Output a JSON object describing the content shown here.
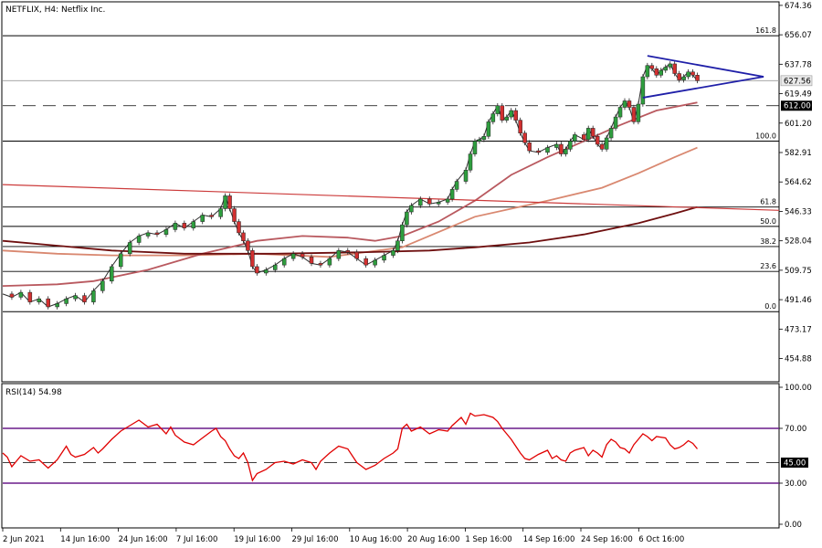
{
  "chart_data": [
    {
      "type": "candlestick",
      "title": "NETFLIX, H4:  Netflix Inc.",
      "price_axis_ticks": [
        "674.36",
        "656.07",
        "637.78",
        "619.49",
        "601.20",
        "582.91",
        "564.62",
        "546.33",
        "528.04",
        "509.75",
        "491.46",
        "473.17",
        "454.88"
      ],
      "price_axis_values": [
        674.36,
        656.07,
        637.78,
        619.49,
        601.2,
        582.91,
        564.62,
        546.33,
        528.04,
        509.75,
        491.46,
        473.17,
        454.88
      ],
      "ylim": [
        441,
        676
      ],
      "current_price": {
        "label": "627.56",
        "value": 627.56
      },
      "support_level": {
        "label": "612.00",
        "value": 612.0
      },
      "fibonacci_levels": [
        {
          "label": "161.8",
          "value": 655.5
        },
        {
          "label": "100.0",
          "value": 590.0
        },
        {
          "label": "61.8",
          "value": 549.0
        },
        {
          "label": "50.0",
          "value": 537.0
        },
        {
          "label": "38.2",
          "value": 524.5
        },
        {
          "label": "23.6",
          "value": 509.0
        },
        {
          "label": "0.0",
          "value": 484.0
        }
      ],
      "x_axis_labels": [
        "2 Jun 2021",
        "14 Jun 16:00",
        "24 Jun 16:00",
        "7 Jul 16:00",
        "19 Jul 16:00",
        "29 Jul 16:00",
        "10 Aug 16:00",
        "20 Aug 16:00",
        "1 Sep 16:00",
        "14 Sep 16:00",
        "24 Sep 16:00",
        "6 Oct 16:00"
      ],
      "close_series": [
        [
          0,
          495
        ],
        [
          10,
          493
        ],
        [
          20,
          496
        ],
        [
          30,
          490
        ],
        [
          40,
          492
        ],
        [
          50,
          487
        ],
        [
          60,
          489
        ],
        [
          70,
          492
        ],
        [
          80,
          494
        ],
        [
          90,
          490
        ],
        [
          100,
          497
        ],
        [
          110,
          503
        ],
        [
          120,
          512
        ],
        [
          130,
          520
        ],
        [
          140,
          527
        ],
        [
          150,
          531
        ],
        [
          160,
          533
        ],
        [
          170,
          532
        ],
        [
          180,
          535
        ],
        [
          190,
          539
        ],
        [
          200,
          536
        ],
        [
          210,
          540
        ],
        [
          220,
          544
        ],
        [
          230,
          543
        ],
        [
          240,
          548
        ],
        [
          245,
          556
        ],
        [
          250,
          548
        ],
        [
          255,
          540
        ],
        [
          260,
          533
        ],
        [
          265,
          528
        ],
        [
          270,
          522
        ],
        [
          275,
          512
        ],
        [
          280,
          508
        ],
        [
          290,
          510
        ],
        [
          300,
          513
        ],
        [
          310,
          517
        ],
        [
          320,
          520
        ],
        [
          330,
          518
        ],
        [
          340,
          514
        ],
        [
          350,
          513
        ],
        [
          360,
          517
        ],
        [
          370,
          522
        ],
        [
          380,
          521
        ],
        [
          390,
          517
        ],
        [
          400,
          513
        ],
        [
          410,
          516
        ],
        [
          420,
          519
        ],
        [
          430,
          522
        ],
        [
          435,
          528
        ],
        [
          440,
          538
        ],
        [
          445,
          546
        ],
        [
          450,
          550
        ],
        [
          460,
          554
        ],
        [
          470,
          551
        ],
        [
          480,
          552
        ],
        [
          490,
          554
        ],
        [
          495,
          560
        ],
        [
          500,
          565
        ],
        [
          510,
          572
        ],
        [
          515,
          582
        ],
        [
          520,
          590
        ],
        [
          525,
          591
        ],
        [
          530,
          593
        ],
        [
          535,
          602
        ],
        [
          540,
          607
        ],
        [
          545,
          612
        ],
        [
          550,
          603
        ],
        [
          555,
          605
        ],
        [
          560,
          609
        ],
        [
          565,
          603
        ],
        [
          570,
          595
        ],
        [
          575,
          589
        ],
        [
          580,
          584
        ],
        [
          590,
          583
        ],
        [
          600,
          586
        ],
        [
          610,
          588
        ],
        [
          615,
          582
        ],
        [
          620,
          585
        ],
        [
          625,
          590
        ],
        [
          630,
          594
        ],
        [
          640,
          591
        ],
        [
          645,
          598
        ],
        [
          650,
          593
        ],
        [
          655,
          588
        ],
        [
          660,
          585
        ],
        [
          665,
          592
        ],
        [
          670,
          598
        ],
        [
          675,
          605
        ],
        [
          680,
          611
        ],
        [
          685,
          615
        ],
        [
          690,
          611
        ],
        [
          695,
          602
        ],
        [
          700,
          613
        ],
        [
          705,
          630
        ],
        [
          710,
          637
        ],
        [
          715,
          635
        ],
        [
          720,
          631
        ],
        [
          725,
          634
        ],
        [
          730,
          636
        ],
        [
          735,
          638
        ],
        [
          740,
          632
        ],
        [
          745,
          628
        ],
        [
          750,
          630
        ],
        [
          755,
          633
        ],
        [
          760,
          631
        ],
        [
          765,
          627.56
        ]
      ],
      "moving_averages": [
        {
          "color": "#d98870",
          "points": [
            [
              0,
              522
            ],
            [
              60,
              520
            ],
            [
              120,
              519
            ],
            [
              200,
              519
            ],
            [
              280,
              520
            ],
            [
              360,
              518
            ],
            [
              440,
              524
            ],
            [
              520,
              543
            ],
            [
              600,
              553
            ],
            [
              660,
              561
            ],
            [
              700,
              570
            ],
            [
              740,
              580
            ],
            [
              765,
              586
            ]
          ]
        },
        {
          "color": "#b9595f",
          "points": [
            [
              0,
              500
            ],
            [
              60,
              501
            ],
            [
              100,
              503
            ],
            [
              160,
              510
            ],
            [
              220,
              520
            ],
            [
              280,
              528
            ],
            [
              330,
              531
            ],
            [
              380,
              530
            ],
            [
              410,
              528
            ],
            [
              440,
              531
            ],
            [
              480,
              540
            ],
            [
              520,
              553
            ],
            [
              560,
              569
            ],
            [
              600,
              580
            ],
            [
              640,
              590
            ],
            [
              680,
              600
            ],
            [
              720,
              609
            ],
            [
              765,
              614
            ]
          ]
        },
        {
          "color": "#6e0f0f",
          "points": [
            [
              0,
              528
            ],
            [
              60,
              525
            ],
            [
              120,
              522
            ],
            [
              200,
              520
            ],
            [
              300,
              520
            ],
            [
              400,
              521
            ],
            [
              470,
              522
            ],
            [
              520,
              524
            ],
            [
              580,
              527
            ],
            [
              640,
              532
            ],
            [
              700,
              539
            ],
            [
              740,
              545
            ],
            [
              765,
              549
            ]
          ]
        }
      ],
      "descending_trendline": {
        "color": "#cc3b3b",
        "points": [
          [
            0,
            563
          ],
          [
            855,
            547
          ]
        ]
      },
      "triangle": {
        "color": "#1f1fa8",
        "upper": [
          [
            710,
            643
          ],
          [
            838,
            630
          ]
        ],
        "lower": [
          [
            705,
            617
          ],
          [
            838,
            630
          ]
        ]
      }
    },
    {
      "type": "line",
      "title": "RSI(14) 54.98",
      "ylim": [
        -2,
        102
      ],
      "y_ticks": [
        "100.00",
        "70.00",
        "45.00",
        "30.00",
        "0.00"
      ],
      "y_tick_values": [
        100,
        70,
        45,
        30,
        0
      ],
      "upper_level": 70,
      "lower_level": 30,
      "mid_level": {
        "label": "45.00",
        "value": 45
      },
      "values": [
        [
          0,
          52
        ],
        [
          5,
          49
        ],
        [
          10,
          42
        ],
        [
          15,
          46
        ],
        [
          20,
          50
        ],
        [
          30,
          46
        ],
        [
          40,
          47
        ],
        [
          50,
          41
        ],
        [
          60,
          47
        ],
        [
          65,
          52
        ],
        [
          70,
          57
        ],
        [
          75,
          51
        ],
        [
          80,
          49
        ],
        [
          90,
          51
        ],
        [
          100,
          56
        ],
        [
          105,
          52
        ],
        [
          110,
          55
        ],
        [
          120,
          62
        ],
        [
          130,
          68
        ],
        [
          140,
          72
        ],
        [
          150,
          76
        ],
        [
          160,
          71
        ],
        [
          170,
          73
        ],
        [
          180,
          66
        ],
        [
          185,
          71
        ],
        [
          190,
          65
        ],
        [
          200,
          60
        ],
        [
          210,
          58
        ],
        [
          220,
          63
        ],
        [
          230,
          68
        ],
        [
          235,
          70
        ],
        [
          240,
          64
        ],
        [
          245,
          61
        ],
        [
          250,
          55
        ],
        [
          255,
          50
        ],
        [
          260,
          48
        ],
        [
          265,
          52
        ],
        [
          270,
          45
        ],
        [
          275,
          32
        ],
        [
          280,
          37
        ],
        [
          290,
          40
        ],
        [
          300,
          45
        ],
        [
          310,
          46
        ],
        [
          320,
          44
        ],
        [
          330,
          47
        ],
        [
          340,
          45
        ],
        [
          345,
          40
        ],
        [
          350,
          46
        ],
        [
          360,
          52
        ],
        [
          370,
          57
        ],
        [
          380,
          55
        ],
        [
          390,
          45
        ],
        [
          400,
          40
        ],
        [
          410,
          43
        ],
        [
          420,
          48
        ],
        [
          430,
          52
        ],
        [
          435,
          55
        ],
        [
          440,
          70
        ],
        [
          445,
          73
        ],
        [
          450,
          68
        ],
        [
          460,
          71
        ],
        [
          470,
          66
        ],
        [
          480,
          69
        ],
        [
          490,
          68
        ],
        [
          495,
          72
        ],
        [
          500,
          75
        ],
        [
          505,
          78
        ],
        [
          510,
          73
        ],
        [
          515,
          81
        ],
        [
          520,
          79
        ],
        [
          530,
          80
        ],
        [
          540,
          78
        ],
        [
          545,
          75
        ],
        [
          550,
          70
        ],
        [
          555,
          66
        ],
        [
          560,
          62
        ],
        [
          565,
          57
        ],
        [
          570,
          52
        ],
        [
          575,
          48
        ],
        [
          580,
          47
        ],
        [
          590,
          51
        ],
        [
          600,
          54
        ],
        [
          605,
          48
        ],
        [
          610,
          50
        ],
        [
          615,
          47
        ],
        [
          620,
          46
        ],
        [
          625,
          52
        ],
        [
          630,
          54
        ],
        [
          640,
          56
        ],
        [
          645,
          50
        ],
        [
          650,
          54
        ],
        [
          655,
          52
        ],
        [
          660,
          49
        ],
        [
          665,
          58
        ],
        [
          670,
          62
        ],
        [
          675,
          60
        ],
        [
          680,
          56
        ],
        [
          685,
          55
        ],
        [
          690,
          52
        ],
        [
          695,
          58
        ],
        [
          700,
          62
        ],
        [
          705,
          66
        ],
        [
          710,
          64
        ],
        [
          715,
          61
        ],
        [
          720,
          64
        ],
        [
          730,
          63
        ],
        [
          735,
          58
        ],
        [
          740,
          55
        ],
        [
          745,
          56
        ],
        [
          750,
          58
        ],
        [
          755,
          61
        ],
        [
          760,
          59
        ],
        [
          765,
          54.98
        ]
      ]
    }
  ]
}
